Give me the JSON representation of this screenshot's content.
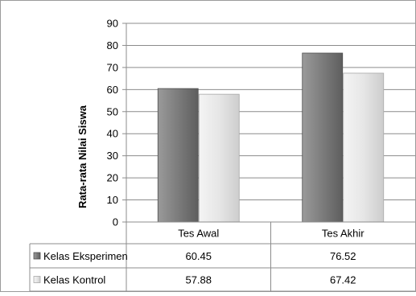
{
  "chart_data": {
    "type": "bar",
    "ylabel": "Rata-rata Nilai Siswa",
    "ylim": [
      0,
      90
    ],
    "y_ticks": [
      "0",
      "10",
      "20",
      "30",
      "40",
      "50",
      "60",
      "70",
      "80",
      "90"
    ],
    "categories": [
      "Tes Awal",
      "Tes Akhir"
    ],
    "grid": true,
    "legend_placement": "data-table-left",
    "series": [
      {
        "name": "Kelas Eksperimen",
        "values": [
          60.45,
          76.52
        ],
        "labels": [
          "60.45",
          "76.52"
        ],
        "color": "#7a7a7a"
      },
      {
        "name": "Kelas Kontrol",
        "values": [
          57.88,
          67.42
        ],
        "labels": [
          "57.88",
          "67.42"
        ],
        "color": "#e6e6e6"
      }
    ]
  }
}
